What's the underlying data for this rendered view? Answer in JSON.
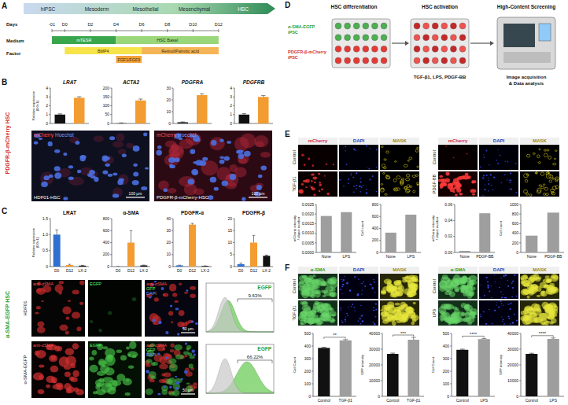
{
  "figure": {
    "A": {
      "label": "A",
      "stages": [
        "hiPSC",
        "Mesoderm",
        "Mesothelial",
        "Mesenchymal",
        "HSC"
      ],
      "days_label": "Days",
      "days": [
        {
          "value": -1,
          "label": "-01"
        },
        {
          "value": 0,
          "label": "D0"
        },
        {
          "value": 2,
          "label": "D2"
        },
        {
          "value": 4,
          "label": "D4"
        },
        {
          "value": 6,
          "label": "D6"
        },
        {
          "value": 8,
          "label": "D8"
        },
        {
          "value": 10,
          "label": "D10"
        },
        {
          "value": 12,
          "label": "D12"
        }
      ],
      "medium_label": "Medium",
      "media": [
        {
          "name": "mTESR",
          "start": -1,
          "end": 4,
          "color": "#3aa64c"
        },
        {
          "name": "HSC Basal",
          "start": 4,
          "end": 12,
          "color": "#9ad67a"
        }
      ],
      "factor_label": "Factor",
      "factors": [
        {
          "name": "BMP4",
          "start": 0,
          "end": 6,
          "color": "#f7e34a"
        },
        {
          "name": "Retinol/Palmitic acid",
          "start": 6,
          "end": 12,
          "color": "#f5b556"
        },
        {
          "name": "FGF1/FGF3",
          "start": 4,
          "end": 6,
          "color": "#f4a23c"
        }
      ]
    },
    "B": {
      "label": "B",
      "side_label": "PDGFR-β-mCherry HSC",
      "images": [
        {
          "channels": [
            "mCherry",
            "Hoechst"
          ],
          "name": "HDF01-HSC",
          "scale": "100 μm"
        },
        {
          "channels": [
            "mCherry",
            "Hoechst"
          ],
          "name": "PDGFR-β-mCherry-HSC",
          "scale": "100 μm"
        }
      ]
    },
    "C": {
      "label": "C",
      "side_label": "α-SMA-EGFP HSC",
      "rows": [
        "HDF01",
        "α-SMA-EGFP"
      ],
      "channels": [
        "anti-αSMA",
        "EGFP"
      ],
      "merge": [
        "anti-αSMA",
        "GFP",
        "DAPI"
      ],
      "histogram_label": "EGFP",
      "percents": [
        "9.63%",
        "66.22%"
      ],
      "scale": "50 μm"
    },
    "D": {
      "label": "D",
      "steps": [
        "HSC differentiation",
        "HSC activation",
        "High-Content Screening"
      ],
      "lines": [
        [
          "α-SMA-EGFP",
          "iPSC"
        ],
        [
          "PDGFR-β-mCherry",
          "iPSC"
        ]
      ],
      "treatments": "TGF-β1, LPS, PDGF-BB",
      "analysis": [
        "Image acquisition",
        "& Data analysis"
      ]
    },
    "E": {
      "label": "E",
      "groups": [
        {
          "channels": [
            "mCherry",
            "DAPI",
            "MASK"
          ],
          "rows": [
            "Control",
            "TGF-β1"
          ]
        },
        {
          "channels": [
            "mCherry",
            "DAPI",
            "MASK"
          ],
          "rows": [
            "Control",
            "PDGF-BB"
          ]
        }
      ]
    },
    "F": {
      "label": "F",
      "groups": [
        {
          "channels": [
            "α-SMA",
            "DAPI",
            "MASK"
          ],
          "rows": [
            "Control",
            "TGF-β1"
          ]
        },
        {
          "channels": [
            "α-SMA",
            "DAPI",
            "MASK"
          ],
          "rows": [
            "Control",
            "LPS"
          ]
        }
      ]
    }
  },
  "chart_data": [
    {
      "type": "bar",
      "title": "LRAT",
      "categories": [
        null,
        null
      ],
      "values": [
        1,
        2.9
      ],
      "error": [
        0.08,
        0.12
      ],
      "colors": [
        "#111111",
        "#f39c32"
      ],
      "ylim": [
        0,
        4
      ],
      "yticks": [
        0,
        1,
        2,
        3,
        4
      ],
      "ylabel": [
        "Relative expression",
        "(D0=1)"
      ]
    },
    {
      "type": "bar",
      "title": "ACTA2",
      "categories": [
        null,
        null
      ],
      "values": [
        1,
        130
      ],
      "error": [
        2,
        8
      ],
      "colors": [
        "#111111",
        "#f39c32"
      ],
      "ylim": [
        0,
        200
      ],
      "yticks": [
        0,
        50,
        100,
        150,
        200
      ]
    },
    {
      "type": "bar",
      "title": "PDGFRA",
      "categories": [
        null,
        null
      ],
      "values": [
        1,
        24
      ],
      "error": [
        0.3,
        1.2
      ],
      "colors": [
        "#111111",
        "#f39c32"
      ],
      "ylim": [
        0,
        30
      ],
      "yticks": [
        0,
        10,
        20,
        30
      ]
    },
    {
      "type": "bar",
      "title": "PDGFRB",
      "categories": [
        null,
        null
      ],
      "values": [
        1,
        3
      ],
      "error": [
        0.1,
        0.15
      ],
      "colors": [
        "#111111",
        "#f39c32"
      ],
      "ylim": [
        0,
        4
      ],
      "yticks": [
        0,
        1,
        2,
        3,
        4
      ]
    },
    {
      "type": "bar",
      "title": "LRAT",
      "categories": [
        "D0",
        "D12",
        "LX-2"
      ],
      "values": [
        1,
        0.05,
        0.03
      ],
      "error": [
        0.15,
        0.02,
        0.01
      ],
      "colors": [
        "#2f6fd0",
        "#f39c32",
        "#111111"
      ],
      "ylim": [
        0,
        1.5
      ],
      "yticks": [
        0,
        0.5,
        {
          "value": 1,
          "label": "1.0"
        },
        1.5
      ],
      "ylabel": [
        "Relative expression",
        "(D0=1)"
      ]
    },
    {
      "type": "bar",
      "title": "α-SMA",
      "categories": [
        "D0",
        "D12",
        "LX-2"
      ],
      "values": [
        1,
        400,
        20
      ],
      "error": [
        1,
        200,
        5
      ],
      "colors": [
        "#2f6fd0",
        "#f39c32",
        "#111111"
      ],
      "ylim": [
        0,
        800
      ],
      "yticks": [
        0,
        200,
        400,
        600,
        800
      ]
    },
    {
      "type": "bar",
      "title": "PDGFR-α",
      "categories": [
        "D0",
        "D12",
        "LX-2"
      ],
      "values": [
        1,
        35,
        0.5
      ],
      "error": [
        0.2,
        1,
        0.1
      ],
      "colors": [
        "#2f6fd0",
        "#f39c32",
        "#111111"
      ],
      "ylim": [
        0,
        40
      ],
      "yticks": [
        0,
        10,
        20,
        30,
        40
      ]
    },
    {
      "type": "bar",
      "title": "PDGFR-β",
      "categories": [
        "D0",
        "D12",
        "LX-2"
      ],
      "values": [
        1,
        10,
        4.5
      ],
      "error": [
        0.5,
        3,
        0.3
      ],
      "colors": [
        "#2f6fd0",
        "#f39c32",
        "#111111"
      ],
      "ylim": [
        0,
        20
      ],
      "yticks": [
        0,
        5,
        10,
        15,
        20
      ]
    },
    {
      "type": "bar",
      "categories": [
        "None",
        "LPS"
      ],
      "values": [
        0.0019,
        0.0021
      ],
      "colors": [
        "#9e9e9e",
        "#9e9e9e"
      ],
      "ylim": [
        0,
        0.0025
      ],
      "yticks": [
        {
          "value": 0,
          "label": "0.0000"
        },
        0.0005,
        {
          "value": 0.001,
          "label": "0.0010"
        },
        0.0015,
        {
          "value": 0.002,
          "label": "0.0020"
        },
        0.0025
      ],
      "ylabel": [
        "mCherry intensity",
        "/ object number"
      ]
    },
    {
      "type": "bar",
      "categories": [
        "None",
        "LPS"
      ],
      "values": [
        330,
        630
      ],
      "colors": [
        "#9e9e9e",
        "#9e9e9e"
      ],
      "ylim": [
        0,
        800
      ],
      "yticks": [
        0,
        200,
        400,
        600,
        800
      ],
      "ylabel": "Cell count"
    },
    {
      "type": "bar",
      "categories": [
        "None",
        "PDGF-BB"
      ],
      "values": [
        0.002,
        0.049
      ],
      "colors": [
        "#9e9e9e",
        "#9e9e9e"
      ],
      "ylim": [
        0,
        0.06
      ],
      "yticks": [
        {
          "value": 0,
          "label": "0.00"
        },
        0.02,
        0.04,
        0.06
      ],
      "ylabel": [
        "mCherry intensity",
        "/ object number"
      ]
    },
    {
      "type": "bar",
      "categories": [
        "None",
        "PDGF-BB"
      ],
      "values": [
        350,
        830
      ],
      "colors": [
        "#9e9e9e",
        "#9e9e9e"
      ],
      "ylim": [
        0,
        1000
      ],
      "yticks": [
        0,
        200,
        400,
        600,
        800,
        1000
      ],
      "ylabel": "Cell count"
    },
    {
      "type": "bar",
      "categories": [
        "Control",
        "TGF-β1"
      ],
      "values": [
        385,
        445
      ],
      "error": [
        5,
        6
      ],
      "colors": [
        "#111111",
        "#9e9e9e"
      ],
      "ylim": [
        0,
        500
      ],
      "yticks": [
        0,
        100,
        200,
        300,
        400,
        500
      ],
      "ylabel": "Cell Count",
      "annotation": "**"
    },
    {
      "type": "bar",
      "categories": [
        "Control",
        "TGF-β1"
      ],
      "values": [
        27000,
        36000
      ],
      "error": [
        500,
        1500
      ],
      "colors": [
        "#111111",
        "#9e9e9e"
      ],
      "ylim": [
        0,
        40000
      ],
      "yticks": [
        0,
        10000,
        20000,
        30000,
        40000
      ],
      "ylabel": "GFP intensity",
      "annotation": "***"
    },
    {
      "type": "bar",
      "categories": [
        "Control",
        "LPS"
      ],
      "values": [
        370,
        455
      ],
      "error": [
        5,
        5
      ],
      "colors": [
        "#111111",
        "#9e9e9e"
      ],
      "ylim": [
        0,
        500
      ],
      "yticks": [
        0,
        100,
        200,
        300,
        400,
        500
      ],
      "ylabel": "Cell Count",
      "annotation": "****"
    },
    {
      "type": "bar",
      "categories": [
        "Control",
        "LPS"
      ],
      "values": [
        27000,
        36500
      ],
      "error": [
        400,
        600
      ],
      "colors": [
        "#111111",
        "#9e9e9e"
      ],
      "ylim": [
        0,
        40000
      ],
      "yticks": [
        0,
        10000,
        20000,
        30000,
        40000
      ],
      "ylabel": "GFP intensity",
      "annotation": "****"
    }
  ]
}
